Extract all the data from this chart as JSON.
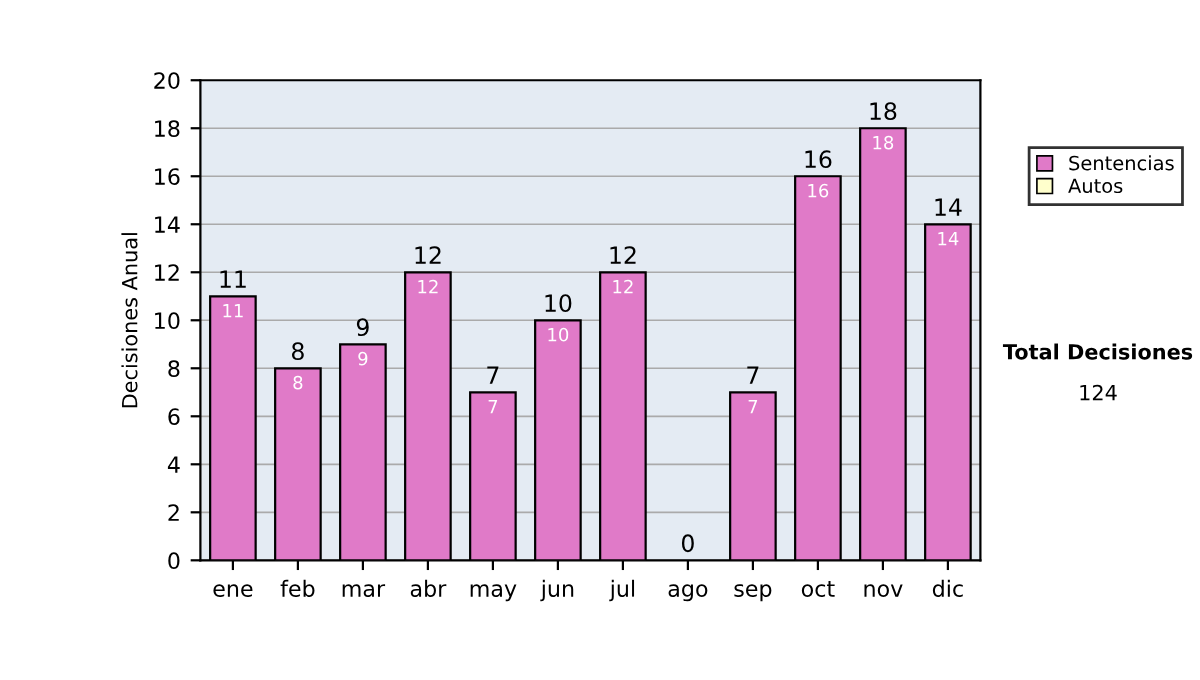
{
  "chart_data": {
    "type": "bar",
    "stacked": true,
    "ylabel": "Decisiones Anual",
    "categories": [
      "ene",
      "feb",
      "mar",
      "abr",
      "may",
      "jun",
      "jul",
      "ago",
      "sep",
      "oct",
      "nov",
      "dic"
    ],
    "series": [
      {
        "name": "Sentencias",
        "color": "#e07ac8",
        "values": [
          11,
          8,
          9,
          12,
          7,
          10,
          12,
          0,
          7,
          16,
          18,
          14
        ],
        "value_labels": [
          "11",
          "8",
          "9",
          "12",
          "7",
          "10",
          "12",
          null,
          "7",
          "16",
          "18",
          "14"
        ]
      },
      {
        "name": "Autos",
        "color": "#ffffcc",
        "values": [
          0,
          0,
          0,
          0,
          0,
          0,
          0,
          0,
          0,
          0,
          0,
          0
        ]
      }
    ],
    "totals": [
      "11",
      "8",
      "9",
      "12",
      "7",
      "10",
      "12",
      "0",
      "7",
      "16",
      "18",
      "14"
    ],
    "ylim": [
      0,
      20
    ],
    "yticks": [
      0,
      2,
      4,
      6,
      8,
      10,
      12,
      14,
      16,
      18,
      20
    ],
    "grid": "y",
    "legend": "right",
    "annotations": [
      "Total Decisiones",
      "124"
    ]
  }
}
